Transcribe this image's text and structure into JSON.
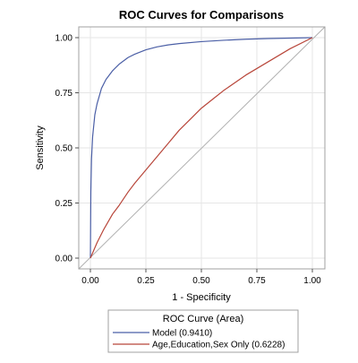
{
  "chart_data": {
    "type": "line",
    "title": "ROC Curves for Comparisons",
    "xlabel": "1 - Specificity",
    "ylabel": "Sensitivity",
    "xlim": [
      0,
      1
    ],
    "ylim": [
      0,
      1
    ],
    "xticks": [
      "0.00",
      "0.25",
      "0.50",
      "0.75",
      "1.00"
    ],
    "yticks": [
      "0.00",
      "0.25",
      "0.50",
      "0.75",
      "1.00"
    ],
    "grid": true,
    "legend": {
      "title": "ROC Curve (Area)",
      "placement": "bottom",
      "entries": [
        "Model  (0.9410)",
        "Age,Education,Sex Only  (0.6228)"
      ]
    },
    "colors": {
      "model": "#4b5fa6",
      "baseline": "#b8463a",
      "reference": "#b0b0b0",
      "grid": "#e6e6e6",
      "frame": "#a0a0a0"
    },
    "series": [
      {
        "name": "Model  (0.9410)",
        "x": [
          0,
          0.002,
          0.005,
          0.01,
          0.02,
          0.03,
          0.05,
          0.07,
          0.1,
          0.13,
          0.17,
          0.2,
          0.25,
          0.3,
          0.35,
          0.4,
          0.5,
          0.6,
          0.7,
          0.8,
          0.9,
          1.0
        ],
        "y": [
          0,
          0.3,
          0.45,
          0.55,
          0.65,
          0.7,
          0.77,
          0.81,
          0.85,
          0.88,
          0.91,
          0.925,
          0.945,
          0.958,
          0.967,
          0.973,
          0.982,
          0.988,
          0.993,
          0.996,
          0.998,
          1.0
        ]
      },
      {
        "name": "Age,Education,Sex Only  (0.6228)",
        "x": [
          0,
          0.03,
          0.06,
          0.1,
          0.13,
          0.17,
          0.2,
          0.25,
          0.3,
          0.35,
          0.4,
          0.45,
          0.5,
          0.55,
          0.6,
          0.7,
          0.8,
          0.9,
          1.0
        ],
        "y": [
          0,
          0.07,
          0.13,
          0.2,
          0.24,
          0.3,
          0.34,
          0.4,
          0.46,
          0.52,
          0.58,
          0.63,
          0.68,
          0.72,
          0.76,
          0.83,
          0.89,
          0.95,
          1.0
        ]
      }
    ]
  }
}
